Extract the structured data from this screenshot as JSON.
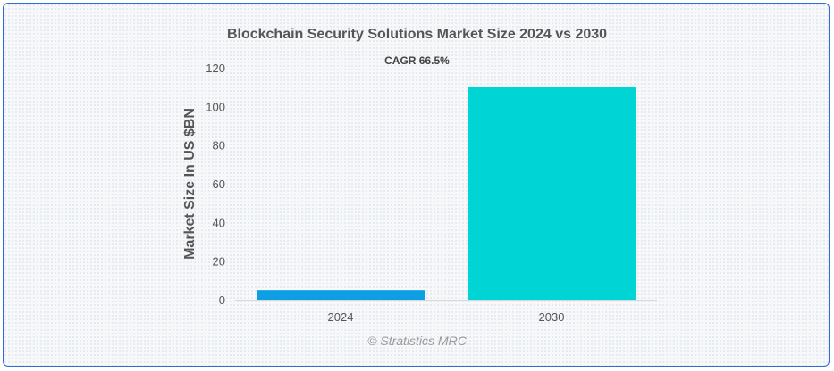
{
  "chart_data": {
    "type": "bar",
    "title": "Blockchain Security Solutions Market Size 2024 vs 2030",
    "subtitle": "CAGR 66.5%",
    "xlabel": "",
    "ylabel": "Market Size In US $BN",
    "categories": [
      "2024",
      "2030"
    ],
    "values": [
      5,
      110
    ],
    "colors": [
      "#0e9ee3",
      "#00d4d4"
    ],
    "ylim": [
      0,
      120
    ],
    "yticks": [
      0,
      20,
      40,
      60,
      80,
      100,
      120
    ],
    "grid": false,
    "legend": "none"
  },
  "watermark": "© Stratistics MRC"
}
